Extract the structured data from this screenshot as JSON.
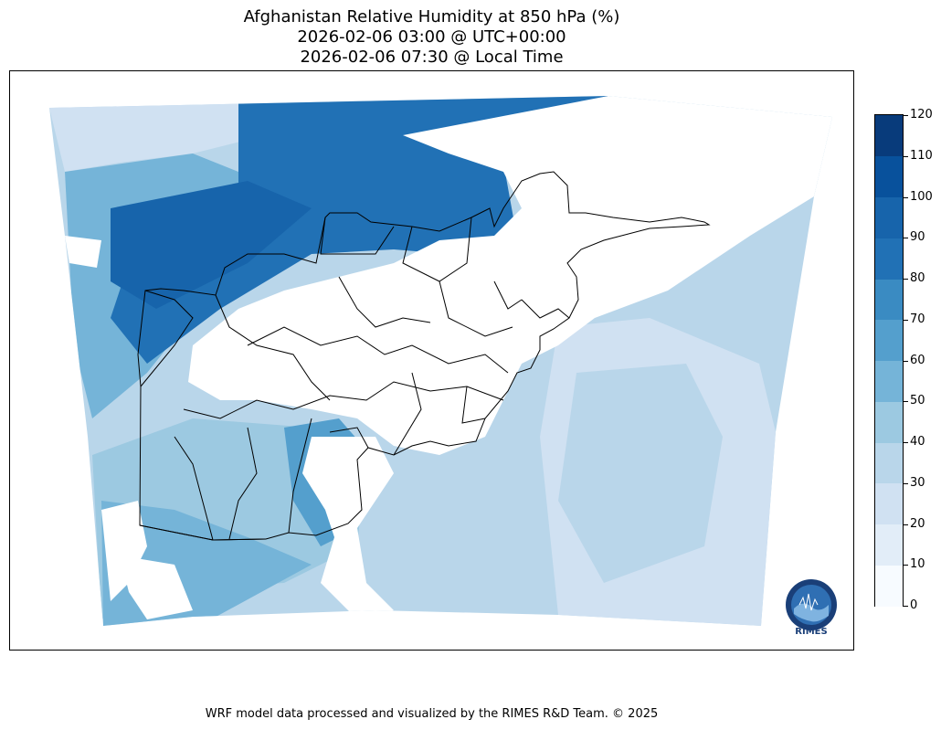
{
  "title": {
    "line1": "Afghanistan Relative Humidity at 850 hPa (%)",
    "line2": "2026-02-06 03:00 @ UTC+00:00",
    "line3": "2026-02-06 07:30 @ Local Time"
  },
  "colorbar": {
    "min": 0,
    "max": 120,
    "levels": [
      0,
      10,
      20,
      30,
      40,
      50,
      60,
      70,
      80,
      90,
      100,
      110,
      120
    ],
    "tick_labels": [
      "0",
      "10",
      "20",
      "30",
      "40",
      "50",
      "60",
      "70",
      "80",
      "90",
      "100",
      "110",
      "120"
    ],
    "colors": [
      "#f7fbff",
      "#e2edf8",
      "#d0e1f2",
      "#b9d6ea",
      "#9cc9e1",
      "#75b4d8",
      "#549fcd",
      "#3a8bc2",
      "#2171b5",
      "#1764ab",
      "#08519c",
      "#083b7b"
    ]
  },
  "logo": {
    "name": "RIMES"
  },
  "footer": "WRF model data processed and visualized by the RIMES R&D Team. © 2025"
}
